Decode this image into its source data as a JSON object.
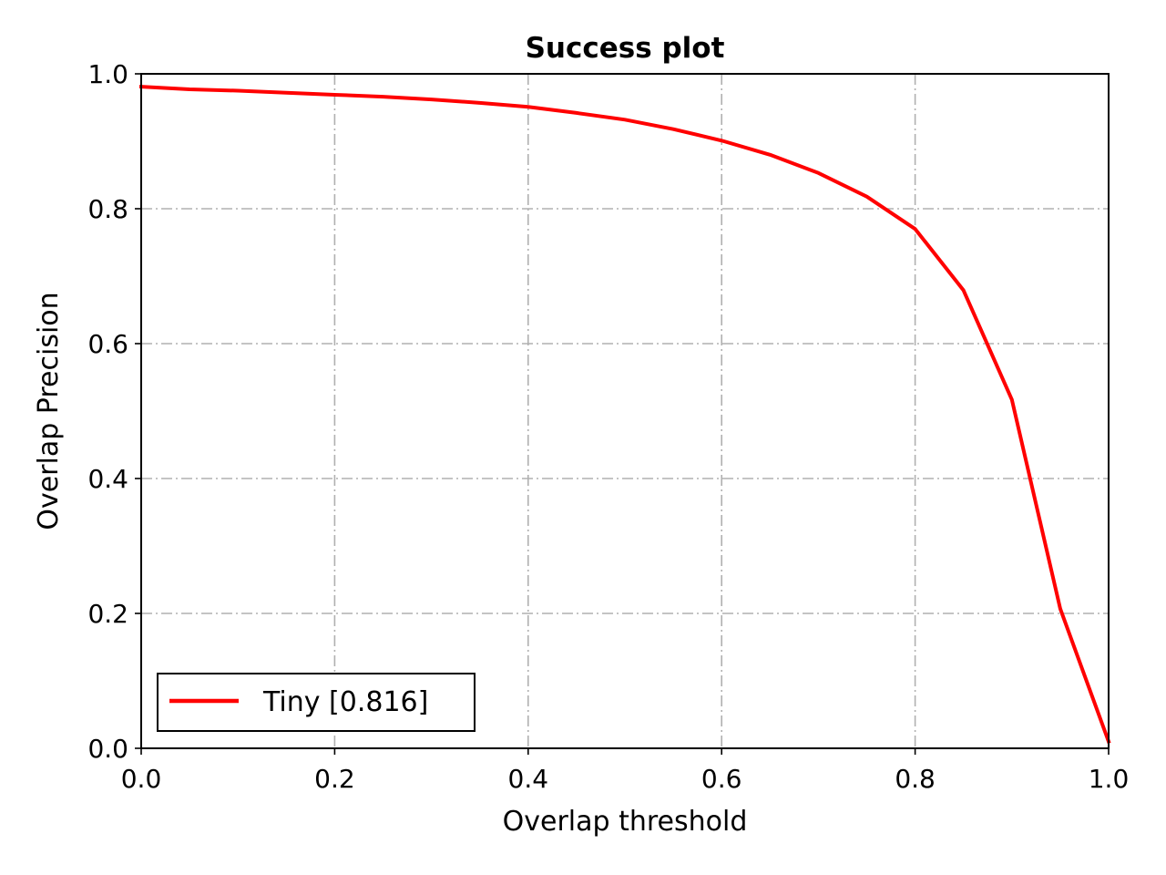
{
  "chart_data": {
    "type": "line",
    "title": "Success plot",
    "xlabel": "Overlap threshold",
    "ylabel": "Overlap Precision",
    "xlim": [
      0.0,
      1.0
    ],
    "ylim": [
      0.0,
      1.0
    ],
    "grid": true,
    "legend_position": "lower-left",
    "x_ticks": [
      "0.0",
      "0.2",
      "0.4",
      "0.6",
      "0.8",
      "1.0"
    ],
    "y_ticks": [
      "0.0",
      "0.2",
      "0.4",
      "0.6",
      "0.8",
      "1.0"
    ],
    "series": [
      {
        "name": "Tiny [0.816]",
        "color": "#ff0000",
        "x": [
          0.0,
          0.05,
          0.1,
          0.15,
          0.2,
          0.25,
          0.3,
          0.35,
          0.4,
          0.45,
          0.5,
          0.55,
          0.6,
          0.65,
          0.7,
          0.75,
          0.8,
          0.85,
          0.9,
          0.95,
          1.0
        ],
        "y": [
          0.981,
          0.977,
          0.975,
          0.972,
          0.969,
          0.966,
          0.962,
          0.957,
          0.951,
          0.942,
          0.932,
          0.918,
          0.901,
          0.88,
          0.853,
          0.818,
          0.77,
          0.679,
          0.517,
          0.207,
          0.01
        ]
      }
    ]
  }
}
